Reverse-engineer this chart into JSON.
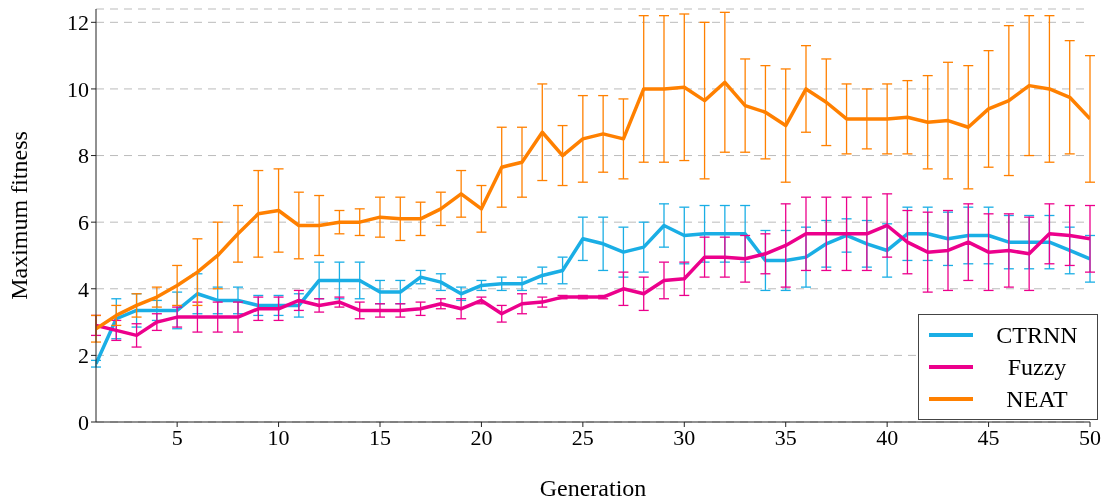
{
  "chart_data": {
    "type": "line",
    "xlabel": "Generation",
    "ylabel": "Maximum fitness",
    "x": [
      1,
      2,
      3,
      4,
      5,
      6,
      7,
      8,
      9,
      10,
      11,
      12,
      13,
      14,
      15,
      16,
      17,
      18,
      19,
      20,
      21,
      22,
      23,
      24,
      25,
      26,
      27,
      28,
      29,
      30,
      31,
      32,
      33,
      34,
      35,
      36,
      37,
      38,
      39,
      40,
      41,
      42,
      43,
      44,
      45,
      46,
      47,
      48,
      49,
      50
    ],
    "xlim": [
      1,
      50
    ],
    "xticks": [
      5,
      10,
      15,
      20,
      25,
      30,
      35,
      40,
      45,
      50
    ],
    "ylim": [
      0,
      12.4
    ],
    "yticks": [
      0,
      2,
      4,
      6,
      8,
      10,
      12
    ],
    "grid": "y",
    "legend": "bottom right",
    "marker": "none",
    "line_style": "solid",
    "series": [
      {
        "name": "CTRNN",
        "color": "#1aaee5",
        "values": [
          1.75,
          3.1,
          3.35,
          3.35,
          3.35,
          3.85,
          3.65,
          3.65,
          3.5,
          3.5,
          3.5,
          4.25,
          4.25,
          4.25,
          3.9,
          3.9,
          4.35,
          4.2,
          3.85,
          4.1,
          4.15,
          4.15,
          4.4,
          4.55,
          5.5,
          5.35,
          5.1,
          5.25,
          5.9,
          5.6,
          5.65,
          5.65,
          5.65,
          4.85,
          4.85,
          4.95,
          5.35,
          5.6,
          5.35,
          5.15,
          5.65,
          5.65,
          5.5,
          5.6,
          5.6,
          5.4,
          5.4,
          5.4,
          5.15,
          4.9
        ],
        "errors": [
          0.1,
          0.6,
          0.5,
          0.3,
          0.55,
          0.6,
          0.4,
          0.4,
          0.3,
          0.3,
          0.35,
          0.55,
          0.55,
          0.55,
          0.35,
          0.35,
          0.2,
          0.25,
          0.2,
          0.15,
          0.2,
          0.2,
          0.25,
          0.4,
          0.65,
          0.8,
          0.75,
          0.75,
          0.65,
          0.85,
          0.85,
          0.85,
          0.85,
          0.9,
          0.9,
          0.9,
          0.7,
          0.5,
          0.7,
          0.8,
          0.8,
          0.8,
          0.8,
          0.85,
          0.85,
          0.8,
          0.8,
          0.8,
          0.7,
          0.7
        ]
      },
      {
        "name": "Fuzzy",
        "color": "#ec008c",
        "values": [
          2.9,
          2.75,
          2.6,
          3.0,
          3.15,
          3.15,
          3.15,
          3.15,
          3.4,
          3.4,
          3.65,
          3.5,
          3.6,
          3.35,
          3.35,
          3.35,
          3.4,
          3.55,
          3.4,
          3.65,
          3.25,
          3.55,
          3.6,
          3.75,
          3.75,
          3.75,
          4.0,
          3.85,
          4.25,
          4.3,
          4.95,
          4.95,
          4.9,
          5.05,
          5.3,
          5.65,
          5.65,
          5.65,
          5.65,
          5.9,
          5.4,
          5.1,
          5.15,
          5.4,
          5.1,
          5.15,
          5.05,
          5.65,
          5.6,
          5.5
        ],
        "errors": [
          0.3,
          0.3,
          0.35,
          0.25,
          0.3,
          0.45,
          0.45,
          0.45,
          0.35,
          0.35,
          0.3,
          0.2,
          0.15,
          0.25,
          0.2,
          0.2,
          0.2,
          0.15,
          0.3,
          0.1,
          0.25,
          0.3,
          0.15,
          0.05,
          0.05,
          0.05,
          0.5,
          0.5,
          0.55,
          0.5,
          0.6,
          0.6,
          0.7,
          0.6,
          1.25,
          1.1,
          1.1,
          1.1,
          1.1,
          0.95,
          0.95,
          1.2,
          1.2,
          1.15,
          1.15,
          1.1,
          1.1,
          0.9,
          0.9,
          1.0
        ]
      },
      {
        "name": "NEAT",
        "color": "#ff8000",
        "values": [
          2.8,
          3.2,
          3.5,
          3.75,
          4.1,
          4.5,
          5.0,
          5.65,
          6.25,
          6.35,
          5.9,
          5.9,
          6.0,
          6.0,
          6.15,
          6.1,
          6.1,
          6.4,
          6.85,
          6.4,
          7.65,
          7.8,
          8.7,
          8.0,
          8.5,
          8.65,
          8.5,
          10.0,
          10.0,
          10.05,
          9.65,
          10.2,
          9.5,
          9.3,
          8.9,
          10.0,
          9.6,
          9.1,
          9.1,
          9.1,
          9.15,
          9.0,
          9.05,
          8.85,
          9.4,
          9.65,
          10.1,
          10.0,
          9.75,
          9.1
        ],
        "errors": [
          0.4,
          0.3,
          0.35,
          0.3,
          0.6,
          1.0,
          1.0,
          0.85,
          1.3,
          1.25,
          1.0,
          0.9,
          0.35,
          0.4,
          0.6,
          0.65,
          0.5,
          0.5,
          0.7,
          0.7,
          1.2,
          1.05,
          1.45,
          0.9,
          1.3,
          1.15,
          1.2,
          2.2,
          2.2,
          2.2,
          2.35,
          2.1,
          1.4,
          1.4,
          1.7,
          1.3,
          1.3,
          1.05,
          0.9,
          1.05,
          1.1,
          1.4,
          1.75,
          1.85,
          1.75,
          2.25,
          2.1,
          2.2,
          1.7,
          1.9
        ]
      }
    ]
  }
}
